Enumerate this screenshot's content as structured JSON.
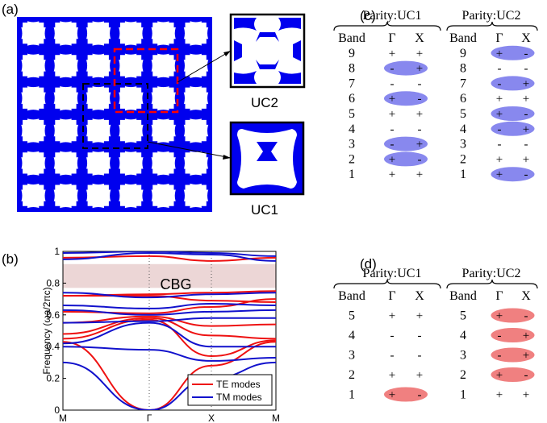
{
  "panels": {
    "a": "(a)",
    "b": "(b)",
    "c": "(c)",
    "d": "(d)"
  },
  "unit_cells": {
    "uc1": "UC1",
    "uc2": "UC2"
  },
  "colors": {
    "structure": "#0000ee",
    "uc1_box": "#000000",
    "uc2_box": "#ff0000",
    "te": "#ee1111",
    "tm": "#1111cc",
    "band_gap_fill": "#ecd6d6",
    "parity_c": "#8888ee",
    "parity_d": "#f08080"
  },
  "table_c": {
    "header_uc1": "Parity:UC1",
    "header_uc2": "Parity:UC2",
    "col_band": "Band",
    "col_gamma": "Γ",
    "col_x": "X",
    "uc1_rows": [
      {
        "band": "9",
        "g": "+",
        "x": "+",
        "hl": false
      },
      {
        "band": "8",
        "g": "-",
        "x": "+",
        "hl": true
      },
      {
        "band": "7",
        "g": "-",
        "x": "-",
        "hl": false
      },
      {
        "band": "6",
        "g": "+",
        "x": "-",
        "hl": true
      },
      {
        "band": "5",
        "g": "+",
        "x": "+",
        "hl": false
      },
      {
        "band": "4",
        "g": "-",
        "x": "-",
        "hl": false
      },
      {
        "band": "3",
        "g": "-",
        "x": "+",
        "hl": true
      },
      {
        "band": "2",
        "g": "+",
        "x": "-",
        "hl": true
      },
      {
        "band": "1",
        "g": "+",
        "x": "+",
        "hl": false
      }
    ],
    "uc2_rows": [
      {
        "band": "9",
        "g": "+",
        "x": "-",
        "hl": true
      },
      {
        "band": "8",
        "g": "-",
        "x": "-",
        "hl": false
      },
      {
        "band": "7",
        "g": "-",
        "x": "+",
        "hl": true
      },
      {
        "band": "6",
        "g": "+",
        "x": "+",
        "hl": false
      },
      {
        "band": "5",
        "g": "+",
        "x": "-",
        "hl": true
      },
      {
        "band": "4",
        "g": "-",
        "x": "+",
        "hl": true
      },
      {
        "band": "3",
        "g": "-",
        "x": "-",
        "hl": false
      },
      {
        "band": "2",
        "g": "+",
        "x": "+",
        "hl": false
      },
      {
        "band": "1",
        "g": "+",
        "x": "-",
        "hl": true
      }
    ]
  },
  "table_d": {
    "header_uc1": "Parity:UC1",
    "header_uc2": "Parity:UC2",
    "col_band": "Band",
    "col_gamma": "Γ",
    "col_x": "X",
    "uc1_rows": [
      {
        "band": "5",
        "g": "+",
        "x": "+",
        "hl": false
      },
      {
        "band": "4",
        "g": "-",
        "x": "-",
        "hl": false
      },
      {
        "band": "3",
        "g": "-",
        "x": "-",
        "hl": false
      },
      {
        "band": "2",
        "g": "+",
        "x": "+",
        "hl": false
      },
      {
        "band": "1",
        "g": "+",
        "x": "-",
        "hl": true
      }
    ],
    "uc2_rows": [
      {
        "band": "5",
        "g": "+",
        "x": "-",
        "hl": true
      },
      {
        "band": "4",
        "g": "-",
        "x": "+",
        "hl": true
      },
      {
        "band": "3",
        "g": "-",
        "x": "+",
        "hl": true
      },
      {
        "band": "2",
        "g": "+",
        "x": "-",
        "hl": true
      },
      {
        "band": "1",
        "g": "+",
        "x": "+",
        "hl": false
      }
    ]
  },
  "chart_data": {
    "type": "line",
    "ylabel": "Frequency (ωa/2πc)",
    "x_ticks": [
      "M",
      "Γ",
      "X",
      "M"
    ],
    "ylim": [
      0,
      1.0
    ],
    "y_ticks": [
      "0",
      "0.2",
      "0.4",
      "0.6",
      "0.8",
      "1"
    ],
    "band_gap": {
      "label": "CBG",
      "range": [
        0.77,
        0.92
      ]
    },
    "legend": [
      "TE modes",
      "TM modes"
    ],
    "legend_position": "bottom-right",
    "series": [
      {
        "name": "TE modes",
        "values_M_G_X_M": [
          [
            0.43,
            0.0,
            0.28,
            0.43
          ],
          [
            0.45,
            0.57,
            0.34,
            0.44
          ],
          [
            0.48,
            0.58,
            0.47,
            0.45
          ],
          [
            0.55,
            0.59,
            0.53,
            0.54
          ],
          [
            0.62,
            0.61,
            0.65,
            0.7
          ],
          [
            0.72,
            0.72,
            0.69,
            0.68
          ],
          [
            0.72,
            0.73,
            0.74,
            0.75
          ],
          [
            0.96,
            0.97,
            0.94,
            0.96
          ]
        ]
      },
      {
        "name": "TM modes",
        "values_M_G_X_M": [
          [
            0.3,
            0.0,
            0.2,
            0.3
          ],
          [
            0.4,
            0.38,
            0.31,
            0.33
          ],
          [
            0.42,
            0.55,
            0.4,
            0.4
          ],
          [
            0.55,
            0.56,
            0.58,
            0.58
          ],
          [
            0.63,
            0.6,
            0.62,
            0.63
          ],
          [
            0.66,
            0.64,
            0.67,
            0.66
          ],
          [
            0.74,
            0.71,
            0.73,
            0.74
          ],
          [
            0.95,
            0.99,
            0.98,
            0.94
          ],
          [
            0.99,
            1.0,
            0.99,
            0.97
          ]
        ]
      }
    ]
  }
}
